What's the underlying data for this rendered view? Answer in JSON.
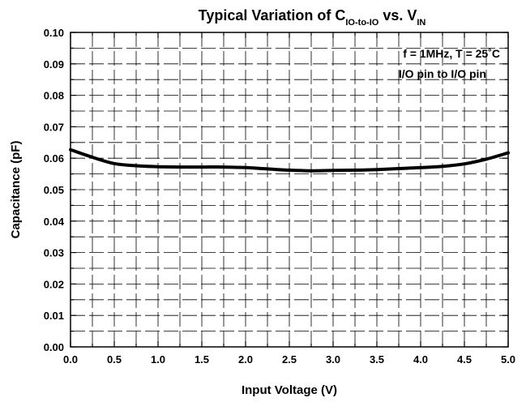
{
  "chart_data": {
    "type": "line",
    "title": {
      "main": "Typical Variation of C",
      "main_sub": "IO-to-IO",
      "mid": " vs. V",
      "mid_sub": "IN"
    },
    "xlabel": "Input Voltage (V)",
    "ylabel": "Capacitance (pF)",
    "xlim": [
      0.0,
      5.0
    ],
    "ylim": [
      0.0,
      0.1
    ],
    "x_ticks": [
      "0.0",
      "0.5",
      "1.0",
      "1.5",
      "2.0",
      "2.5",
      "3.0",
      "3.5",
      "4.0",
      "4.5",
      "5.0"
    ],
    "y_ticks": [
      "0.00",
      "0.01",
      "0.02",
      "0.03",
      "0.04",
      "0.05",
      "0.06",
      "0.07",
      "0.08",
      "0.09",
      "0.10"
    ],
    "grid": true,
    "annotations": [
      "f = 1MHz, T = 25˚C",
      "I/O pin to I/O pin"
    ],
    "series": [
      {
        "x": [
          0.0,
          0.25,
          0.5,
          0.75,
          1.0,
          1.25,
          1.5,
          1.75,
          2.0,
          2.25,
          2.5,
          2.75,
          3.0,
          3.25,
          3.5,
          3.75,
          4.0,
          4.25,
          4.5,
          4.75,
          5.0
        ],
        "values": [
          0.0627,
          0.0603,
          0.0583,
          0.0576,
          0.0573,
          0.0572,
          0.0572,
          0.0572,
          0.057,
          0.0566,
          0.0562,
          0.056,
          0.0561,
          0.0562,
          0.0564,
          0.0567,
          0.057,
          0.0574,
          0.0582,
          0.0597,
          0.0617
        ]
      }
    ]
  }
}
